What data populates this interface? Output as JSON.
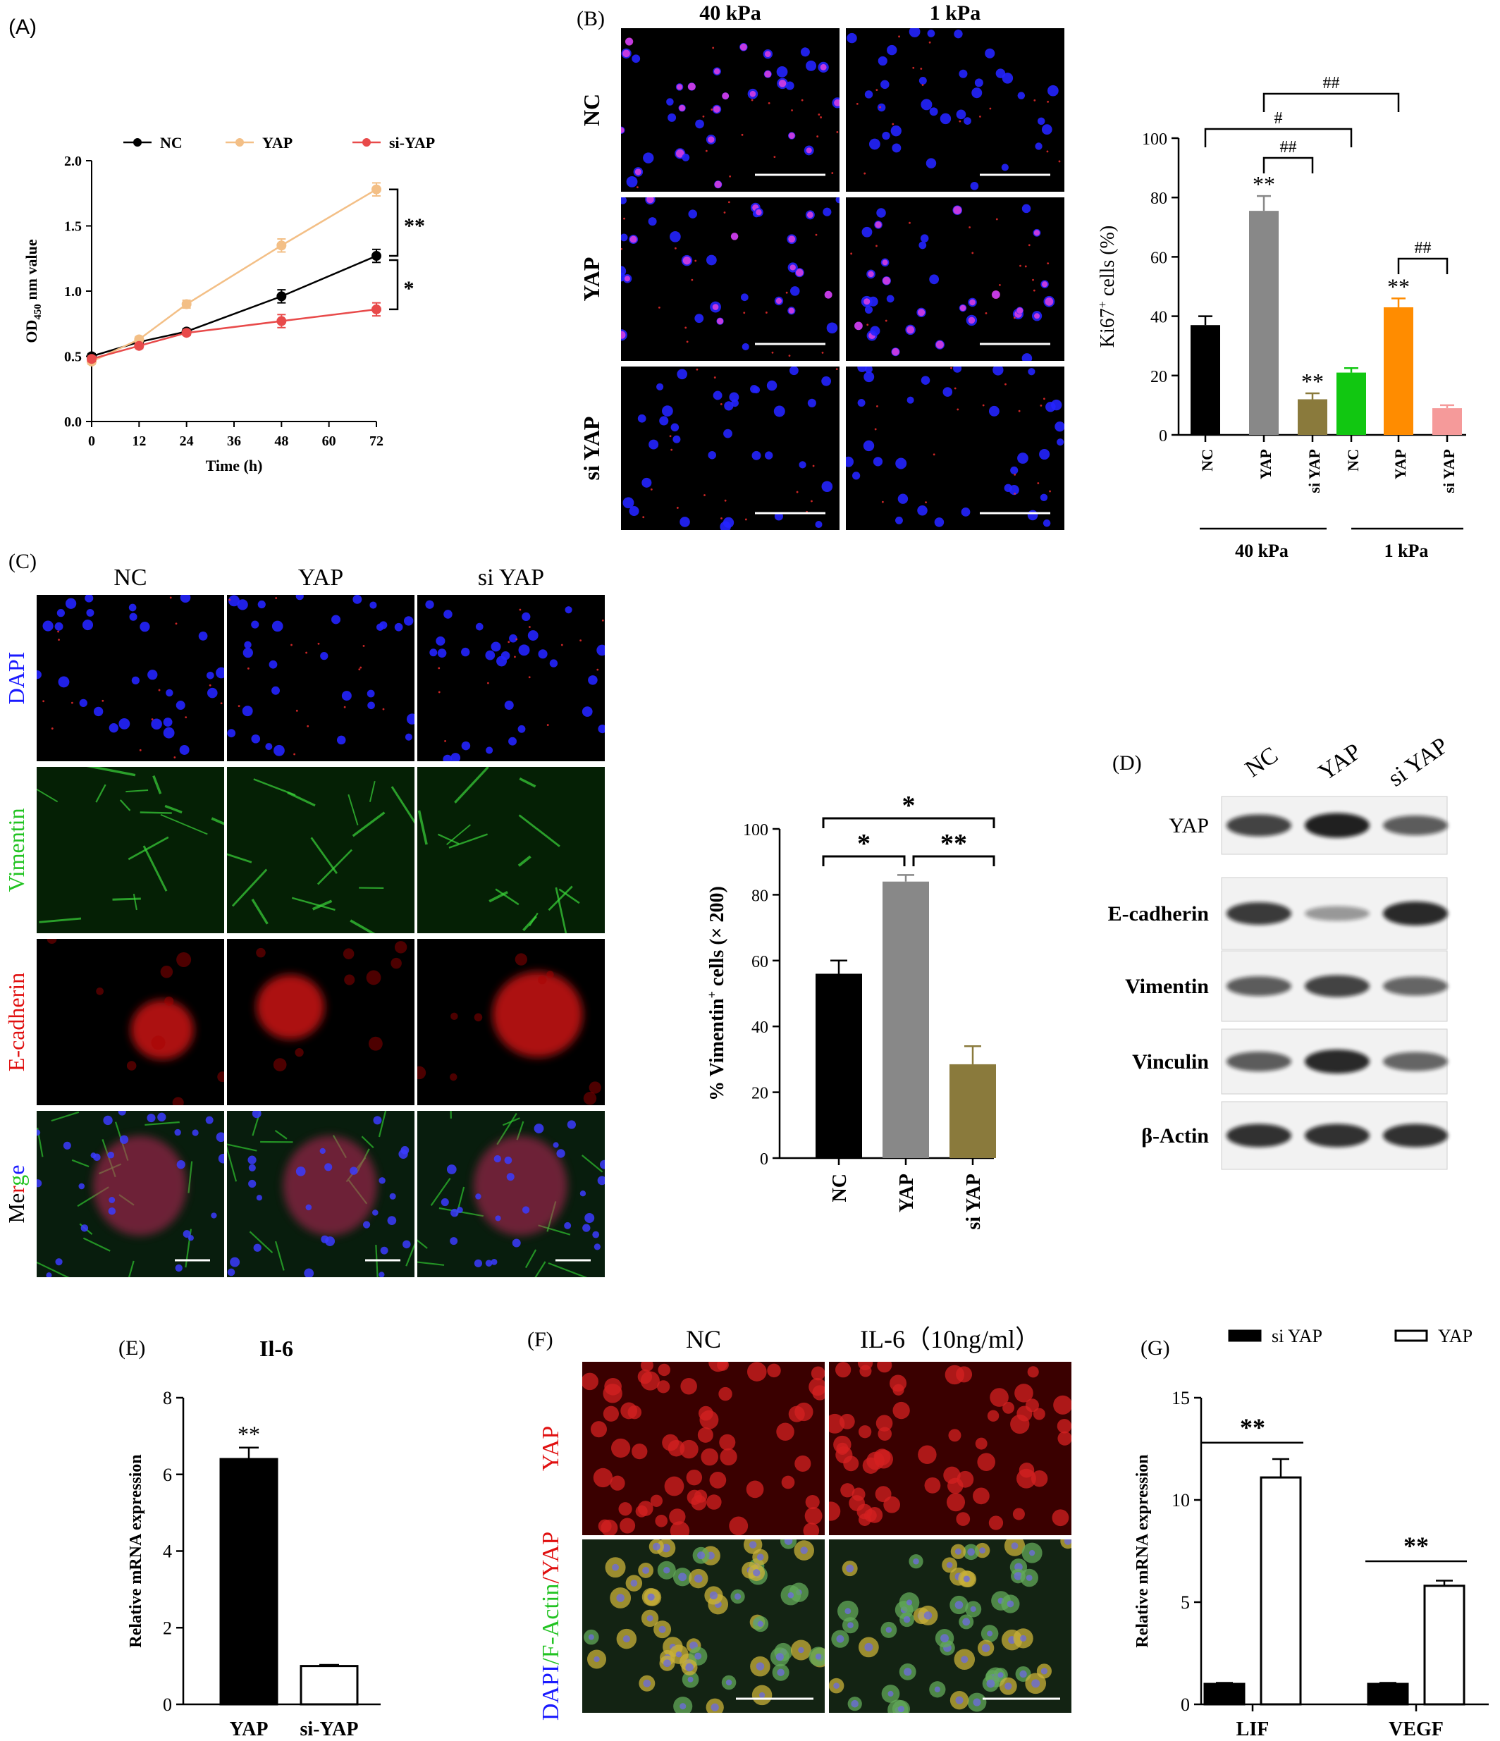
{
  "panels": {
    "A": "(A)",
    "B": "(B)",
    "C": "(C)",
    "D": "(D)",
    "E": "(E)",
    "F": "(F)",
    "G": "(G)"
  },
  "colors": {
    "black": "#000000",
    "peach": "#f3bf86",
    "red": "#e84a4a",
    "gray": "#888888",
    "olive": "#8a7a3c",
    "green": "#11c711",
    "orange": "#ff8c00",
    "pink": "#f59a9a",
    "blue": "#1a1aff",
    "micro_bg": "#000000"
  },
  "microscopy": {
    "B": {
      "cols": [
        "40 kPa",
        "1 kPa"
      ],
      "rows": [
        "NC",
        "YAP",
        "si YAP"
      ]
    },
    "C": {
      "cols": [
        "NC",
        "YAP",
        "si YAP"
      ],
      "rows": [
        "DAPI",
        "Vimentin",
        "E-cadherin"
      ],
      "merge_letters": [
        "M",
        "e",
        "r",
        "g",
        "e"
      ]
    },
    "F": {
      "cols": [
        "NC",
        "IL-6（10ng/ml）"
      ],
      "row1": "YAP",
      "row2_parts": [
        "DAPI",
        "/F-Actin",
        "/YAP"
      ]
    }
  },
  "western": {
    "lanes": [
      "NC",
      "YAP",
      "si YAP"
    ],
    "proteins": [
      "YAP",
      "E-cadherin",
      "Vimentin",
      "Vinculin",
      "β-Actin"
    ],
    "intensity": [
      [
        0.75,
        0.95,
        0.6
      ],
      [
        0.8,
        0.25,
        0.9
      ],
      [
        0.6,
        0.75,
        0.55
      ],
      [
        0.6,
        0.9,
        0.55
      ],
      [
        0.85,
        0.85,
        0.85
      ]
    ]
  },
  "chart_data": [
    {
      "id": "A",
      "type": "line",
      "xlabel": "Time (h)",
      "ylabel_parts": [
        "OD",
        "450",
        " nm value"
      ],
      "x": [
        0,
        12,
        24,
        48,
        72
      ],
      "xticks": [
        "0",
        "12",
        "24",
        "36",
        "48",
        "60",
        "72"
      ],
      "xlim": [
        0,
        72
      ],
      "ylim": [
        0,
        2.0
      ],
      "yticks": [
        "0.0",
        "0.5",
        "1.0",
        "1.5",
        "2.0"
      ],
      "legend": "top",
      "series": [
        {
          "name": "NC",
          "color": "#000000",
          "values": [
            0.5,
            0.61,
            0.69,
            0.96,
            1.27
          ],
          "err": [
            0.02,
            0.02,
            0.02,
            0.05,
            0.05
          ]
        },
        {
          "name": "YAP",
          "color": "#f3bf86",
          "values": [
            0.46,
            0.63,
            0.9,
            1.35,
            1.78
          ],
          "err": [
            0.02,
            0.02,
            0.03,
            0.05,
            0.05
          ]
        },
        {
          "name": "si-YAP",
          "color": "#e84a4a",
          "values": [
            0.48,
            0.58,
            0.68,
            0.77,
            0.86
          ],
          "err": [
            0.02,
            0.02,
            0.02,
            0.05,
            0.05
          ]
        }
      ],
      "annotations": [
        "**",
        "*"
      ]
    },
    {
      "id": "B",
      "type": "bar",
      "ylabel_parts": [
        "Ki67",
        "+",
        " cells (%)"
      ],
      "categories": [
        "NC",
        "YAP",
        "si YAP",
        "NC",
        "YAP",
        "si YAP"
      ],
      "values": [
        37,
        75.5,
        12,
        21,
        43,
        9
      ],
      "err": [
        3,
        5,
        2,
        1.5,
        3,
        1
      ],
      "colors": [
        "#000000",
        "#888888",
        "#8a7a3c",
        "#11c711",
        "#ff8c00",
        "#f59a9a"
      ],
      "ylim": [
        0,
        100
      ],
      "yticks": [
        "0",
        "20",
        "40",
        "60",
        "80",
        "100"
      ],
      "groups": [
        "40 kPa",
        "1 kPa"
      ],
      "bar_marks": [
        "",
        "**",
        "**",
        "",
        "**",
        ""
      ],
      "sig_brackets": [
        "##",
        "#",
        "##",
        "##"
      ]
    },
    {
      "id": "C",
      "type": "bar",
      "ylabel_parts": [
        "% Vimentin",
        "+",
        " cells (× 200)"
      ],
      "categories": [
        "NC",
        "YAP",
        "si YAP"
      ],
      "values": [
        56,
        84,
        28.5
      ],
      "err": [
        4,
        2,
        5.5
      ],
      "colors": [
        "#000000",
        "#888888",
        "#8a7a3c"
      ],
      "ylim": [
        0,
        100
      ],
      "yticks": [
        "0",
        "20",
        "40",
        "60",
        "80",
        "100"
      ],
      "sig_brackets": [
        "*",
        "*",
        "**"
      ]
    },
    {
      "id": "E",
      "type": "bar",
      "title": "Il-6",
      "ylabel": "Relative mRNA expression",
      "categories": [
        "YAP",
        "si-YAP"
      ],
      "values": [
        6.4,
        1.0
      ],
      "err": [
        0.3,
        0.03
      ],
      "fills": [
        "#000000",
        "#ffffff"
      ],
      "ylim": [
        0,
        8
      ],
      "yticks": [
        "0",
        "2",
        "4",
        "6",
        "8"
      ],
      "bar_marks": [
        "**",
        ""
      ]
    },
    {
      "id": "G",
      "type": "bar",
      "ylabel": "Relative mRNA expression",
      "categories": [
        "LIF",
        "VEGF"
      ],
      "series": [
        {
          "name": "si YAP",
          "fill": "#000000",
          "values": [
            1.0,
            1.0
          ],
          "err": [
            0.05,
            0.05
          ]
        },
        {
          "name": "YAP",
          "fill": "#ffffff",
          "values": [
            11.1,
            5.8
          ],
          "err": [
            0.9,
            0.25
          ]
        }
      ],
      "ylim": [
        0,
        15
      ],
      "yticks": [
        "0",
        "5",
        "10",
        "15"
      ],
      "legend": "top",
      "sig_brackets": [
        "**",
        "**"
      ]
    }
  ]
}
